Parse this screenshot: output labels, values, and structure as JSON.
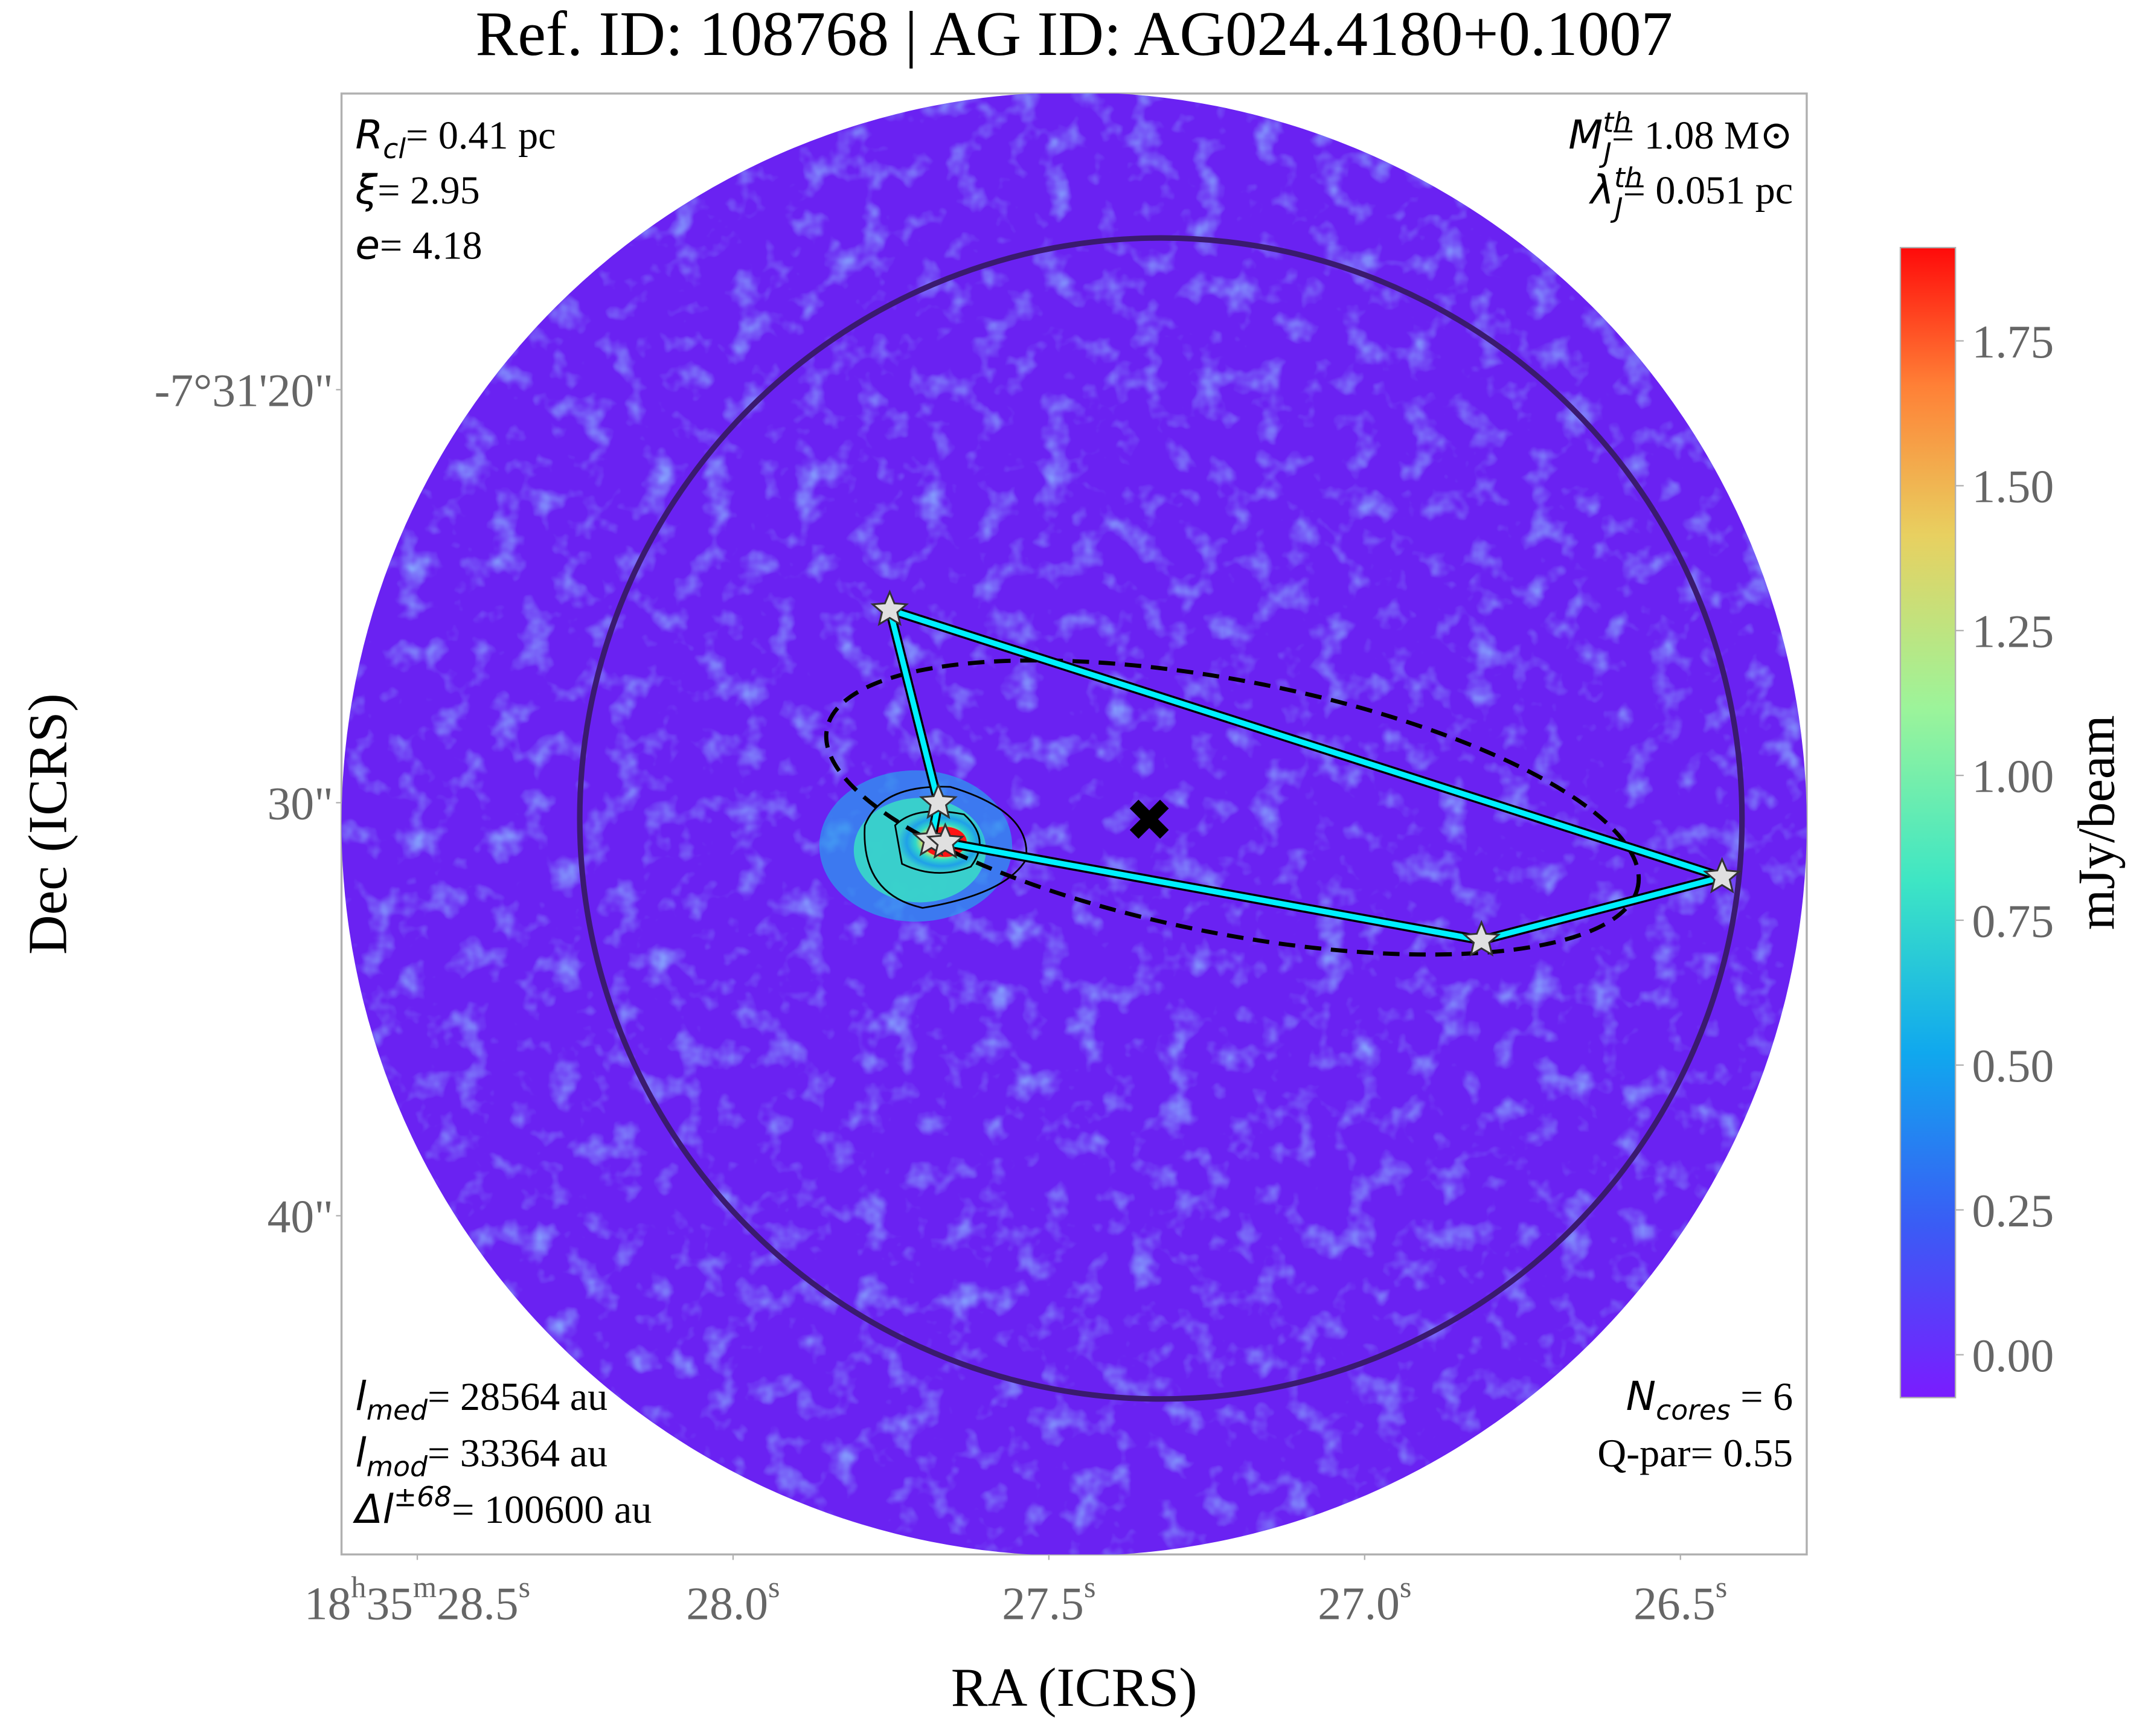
{
  "chart_data": {
    "type": "image",
    "title": "Ref. ID: 108768 | AG ID: AG024.4180+0.1007",
    "x_label": "RA (ICRS)",
    "y_label": "Dec (ICRS)",
    "xlim": [
      28.62,
      26.3
    ],
    "ylim": [
      48.2,
      12.83
    ],
    "xticks": [
      {
        "value": 28.5,
        "label": "18h35m28.5s"
      },
      {
        "value": 28.0,
        "label": "28.0s"
      },
      {
        "value": 27.5,
        "label": "27.5s"
      },
      {
        "value": 27.0,
        "label": "27.0s"
      },
      {
        "value": 26.5,
        "label": "26.5s"
      }
    ],
    "yticks": [
      {
        "value": 20,
        "label": "-7°31'20\""
      },
      {
        "value": 30,
        "label": "30\""
      },
      {
        "value": 40,
        "label": "40\""
      }
    ],
    "cores": {
      "x": [
        27.752,
        27.675,
        27.686,
        27.664,
        26.815,
        26.434
      ],
      "y": [
        25.33,
        30.0,
        30.9,
        30.96,
        33.33,
        31.8
      ]
    },
    "center": {
      "x": 27.341,
      "y": 30.4
    },
    "colorbar": {
      "label": "mJy/beam",
      "lim": [
        -0.074,
        1.911
      ],
      "ticks": [
        {
          "value": 0,
          "label": "0.00"
        },
        0.25,
        {
          "value": 0.5,
          "label": "0.50"
        },
        0.75,
        {
          "value": 1,
          "label": "1.00"
        },
        1.25,
        {
          "value": 1.5,
          "label": "1.50"
        },
        1.75
      ]
    },
    "annotations": {
      "top_left": [
        {
          "base": "R",
          "sub": "cl",
          "rest": "= 0.41 pc"
        },
        {
          "base": "ξ",
          "rest": "= 2.95"
        },
        {
          "base": "e",
          "rest": "= 4.18"
        }
      ],
      "top_right": [
        {
          "base": "M",
          "sub": "J",
          "sup": "th",
          "rest": "= 1.08 M⊙"
        },
        {
          "base": "λ",
          "sub": "J",
          "sup": "th",
          "rest": "= 0.051 pc"
        }
      ],
      "bottom_left": [
        {
          "base": "l",
          "sub": "med",
          "rest": "= 28564 au"
        },
        {
          "base": "l",
          "sub": "mod",
          "rest": "= 33364 au"
        },
        {
          "base": "Δl",
          "sup": "±68",
          "rest": "= 100600 au"
        }
      ],
      "bottom_right": [
        {
          "base": "N",
          "sub": "cores",
          "rest": " = 6"
        },
        {
          "base": "Q-par= 0.55"
        }
      ]
    }
  }
}
